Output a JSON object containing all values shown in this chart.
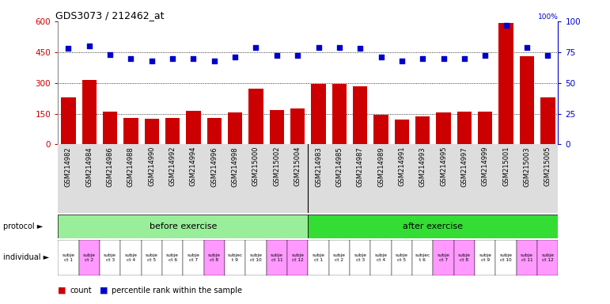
{
  "title": "GDS3073 / 212462_at",
  "samples": [
    "GSM214982",
    "GSM214984",
    "GSM214986",
    "GSM214988",
    "GSM214990",
    "GSM214992",
    "GSM214994",
    "GSM214996",
    "GSM214998",
    "GSM215000",
    "GSM215002",
    "GSM215004",
    "GSM214983",
    "GSM214985",
    "GSM214987",
    "GSM214989",
    "GSM214991",
    "GSM214993",
    "GSM214995",
    "GSM214997",
    "GSM214999",
    "GSM215001",
    "GSM215003",
    "GSM215005"
  ],
  "counts": [
    230,
    315,
    160,
    128,
    125,
    128,
    162,
    128,
    155,
    272,
    168,
    176,
    295,
    293,
    285,
    145,
    120,
    138,
    155,
    158,
    158,
    590,
    430,
    230
  ],
  "percentiles": [
    78,
    80,
    73,
    70,
    68,
    70,
    70,
    68,
    71,
    79,
    72,
    72,
    79,
    79,
    78,
    71,
    68,
    70,
    70,
    70,
    72,
    97,
    79,
    72
  ],
  "bar_color": "#cc0000",
  "dot_color": "#0000cc",
  "ylim_left": [
    0,
    600
  ],
  "ylim_right": [
    0,
    100
  ],
  "yticks_left": [
    0,
    150,
    300,
    450,
    600
  ],
  "yticks_right": [
    0,
    25,
    50,
    75,
    100
  ],
  "before_color": "#99ee99",
  "after_color": "#33dd33",
  "individual_colors_before": [
    "#ffffff",
    "#ff99ff",
    "#ffffff",
    "#ffffff",
    "#ffffff",
    "#ffffff",
    "#ffffff",
    "#ff99ff",
    "#ffffff",
    "#ffffff",
    "#ff99ff",
    "#ff99ff"
  ],
  "individual_colors_after": [
    "#ffffff",
    "#ffffff",
    "#ffffff",
    "#ffffff",
    "#ffffff",
    "#ffffff",
    "#ff99ff",
    "#ff99ff",
    "#ffffff",
    "#ffffff",
    "#ff99ff",
    "#ff99ff"
  ],
  "ind_labels_before": [
    "subje\nct 1",
    "subje\nct 2",
    "subje\nct 3",
    "subje\nct 4",
    "subje\nct 5",
    "subje\nct 6",
    "subje\nct 7",
    "subje\nct 8",
    "subjec\nt 9",
    "subje\nct 10",
    "subje\nct 11",
    "subje\nct 12"
  ],
  "ind_labels_after": [
    "subje\nct 1",
    "subje\nct 2",
    "subje\nct 3",
    "subje\nct 4",
    "subje\nct 5",
    "subjec\nt 6",
    "subje\nct 7",
    "subje\nct 8",
    "subje\nct 9",
    "subje\nct 10",
    "subje\nct 11",
    "subje\nct 12"
  ],
  "bg_color": "#ffffff",
  "axis_label_color_left": "#cc0000",
  "axis_label_color_right": "#0000cc",
  "xlabel_bg": "#dddddd",
  "legend_count_color": "#cc0000",
  "legend_percentile_color": "#0000cc"
}
